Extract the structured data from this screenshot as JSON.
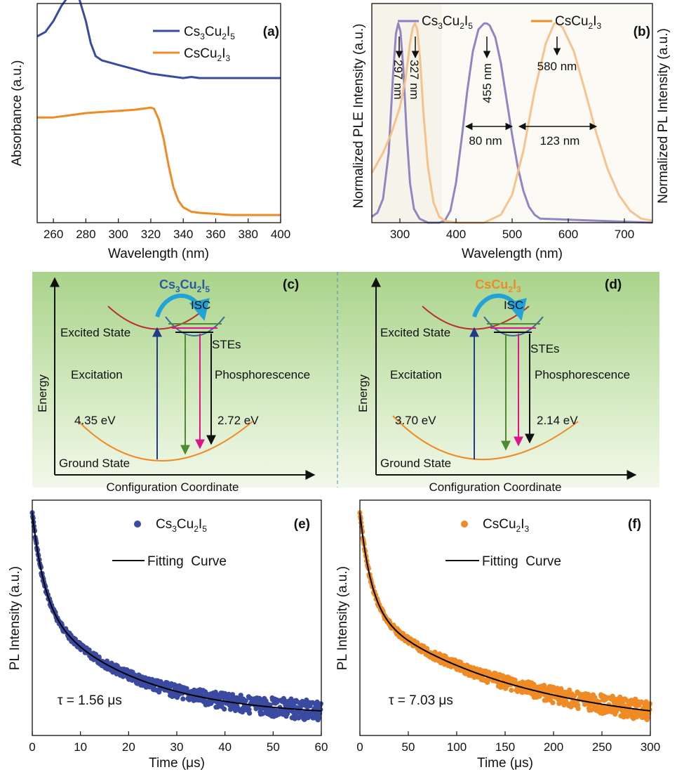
{
  "colors": {
    "blue": "#3a4aa0",
    "orange": "#f08a24",
    "plum": "#8c7ec0",
    "peach": "#f7bf85",
    "darkred": "#c0302f",
    "green": "#4e8a2e",
    "magenta": "#e0138c",
    "cyan": "#1fa3d8",
    "navy": "#223a8a"
  },
  "chart_data": [
    {
      "id": "a",
      "type": "line",
      "panel_label": "(a)",
      "xlabel": "Wavelength (nm)",
      "ylabel": "Absorbance (a.u.)",
      "xlim": [
        250,
        400
      ],
      "ylim": [
        0,
        1
      ],
      "xticks": [
        "260",
        "280",
        "300",
        "320",
        "340",
        "360",
        "380",
        "400"
      ],
      "legend_position": "top-right",
      "series": [
        {
          "name": "Cs3Cu2I5",
          "name_main": "Cs",
          "name_sub1": "3",
          "name_mid": "Cu",
          "name_sub2": "2",
          "name_end": "I",
          "name_sub3": "5",
          "color": "#3a4aa0",
          "x": [
            250,
            255,
            260,
            265,
            270,
            273,
            276,
            280,
            283,
            286,
            290,
            295,
            300,
            310,
            320,
            330,
            340,
            345,
            350,
            360,
            370,
            380,
            390,
            400
          ],
          "y": [
            0.85,
            0.87,
            0.92,
            0.99,
            1.04,
            1.05,
            1.02,
            0.92,
            0.82,
            0.76,
            0.74,
            0.73,
            0.72,
            0.7,
            0.68,
            0.67,
            0.66,
            0.665,
            0.66,
            0.66,
            0.66,
            0.66,
            0.66,
            0.66
          ]
        },
        {
          "name": "CsCu2I3",
          "name_main": "Cs",
          "name_sub1": "",
          "name_mid": "Cu",
          "name_sub2": "2",
          "name_end": "I",
          "name_sub3": "3",
          "color": "#f08a24",
          "x": [
            250,
            260,
            270,
            280,
            290,
            300,
            310,
            315,
            320,
            322,
            325,
            328,
            331,
            334,
            337,
            340,
            345,
            350,
            360,
            370,
            380,
            390,
            400
          ],
          "y": [
            0.48,
            0.48,
            0.49,
            0.5,
            0.505,
            0.51,
            0.515,
            0.52,
            0.525,
            0.52,
            0.47,
            0.38,
            0.26,
            0.16,
            0.1,
            0.07,
            0.05,
            0.045,
            0.04,
            0.035,
            0.035,
            0.035,
            0.035
          ]
        }
      ]
    },
    {
      "id": "b",
      "type": "line",
      "panel_label": "(b)",
      "xlabel": "Wavelength (nm)",
      "ylabel_left": "Normalized PLE Intensity (a.u.)",
      "ylabel_right": "Normalized PL Intensity (a.u.)",
      "xlim": [
        250,
        750
      ],
      "ylim": [
        0,
        1.1
      ],
      "xticks": [
        "300",
        "400",
        "500",
        "600",
        "700"
      ],
      "series": [
        {
          "name": "Cs3Cu2I5",
          "name_main": "Cs",
          "name_sub1": "3",
          "name_mid": "Cu",
          "name_sub2": "2",
          "name_end": "I",
          "name_sub3": "5",
          "color": "#8c7ec0",
          "x": [
            250,
            260,
            270,
            280,
            288,
            293,
            297,
            301,
            306,
            312,
            318,
            325,
            335,
            350,
            370,
            380,
            390,
            400,
            410,
            420,
            430,
            440,
            450,
            455,
            460,
            470,
            480,
            490,
            500,
            510,
            520,
            530,
            540,
            550,
            750
          ],
          "y": [
            0.03,
            0.05,
            0.12,
            0.35,
            0.75,
            0.95,
            1.0,
            0.96,
            0.78,
            0.45,
            0.2,
            0.07,
            0.02,
            0.0,
            0.0,
            0.01,
            0.06,
            0.2,
            0.42,
            0.66,
            0.86,
            0.97,
            1.0,
            1.0,
            0.99,
            0.93,
            0.8,
            0.62,
            0.44,
            0.28,
            0.16,
            0.08,
            0.04,
            0.02,
            0.0
          ]
        },
        {
          "name": "CsCu2I3",
          "name_main": "Cs",
          "name_sub1": "",
          "name_mid": "Cu",
          "name_sub2": "2",
          "name_end": "I",
          "name_sub3": "3",
          "color": "#f7bf85",
          "x": [
            250,
            270,
            285,
            300,
            310,
            318,
            323,
            327,
            331,
            336,
            342,
            350,
            360,
            370,
            380,
            400,
            450,
            480,
            500,
            520,
            540,
            560,
            575,
            580,
            590,
            610,
            630,
            650,
            670,
            690,
            710,
            730,
            750
          ],
          "y": [
            0.25,
            0.35,
            0.45,
            0.58,
            0.72,
            0.9,
            0.98,
            1.0,
            0.97,
            0.82,
            0.55,
            0.28,
            0.1,
            0.03,
            0.01,
            0.0,
            0.0,
            0.04,
            0.14,
            0.36,
            0.66,
            0.9,
            1.0,
            1.0,
            0.98,
            0.86,
            0.66,
            0.45,
            0.27,
            0.14,
            0.06,
            0.02,
            0.01
          ]
        }
      ],
      "annotations": {
        "peak1": "297 nm",
        "peak2": "327 nm",
        "peak3": "455 nm",
        "peak4": "580 nm",
        "fwhm1": "80 nm",
        "fwhm2": "123 nm"
      }
    },
    {
      "id": "e",
      "type": "scatter",
      "panel_label": "(e)",
      "xlabel": "Time (μs)",
      "ylabel": "PL Intensity (a.u.)",
      "xlim": [
        0,
        60
      ],
      "xticks": [
        "0",
        "10",
        "20",
        "30",
        "40",
        "50",
        "60"
      ],
      "legend_position": "top-center",
      "series": [
        {
          "name": "Cs3Cu2I5",
          "name_main": "Cs",
          "name_sub1": "3",
          "name_mid": "Cu",
          "name_sub2": "2",
          "name_end": "I",
          "name_sub3": "5",
          "color": "#3a4aa0",
          "style": "points"
        },
        {
          "name": "Fitting  Curve",
          "color": "#000000",
          "style": "line",
          "tau": 1.56,
          "t2": 20,
          "a1": 0.45,
          "t1": 2.5,
          "a2": 0.55
        }
      ],
      "tau_label": "τ = 1.56 μs"
    },
    {
      "id": "f",
      "type": "scatter",
      "panel_label": "(f)",
      "xlabel": "Time (μs)",
      "ylabel": "PL Intensity (a.u.)",
      "xlim": [
        0,
        300
      ],
      "xticks": [
        "0",
        "50",
        "100",
        "150",
        "200",
        "250",
        "300"
      ],
      "legend_position": "top-center",
      "series": [
        {
          "name": "CsCu2I3",
          "name_main": "Cs",
          "name_sub1": "",
          "name_mid": "Cu",
          "name_sub2": "2",
          "name_end": "I",
          "name_sub3": "3",
          "color": "#f08a24",
          "style": "points"
        },
        {
          "name": "Fitting  Curve",
          "color": "#000000",
          "style": "line",
          "tau": 7.03,
          "t2": 160,
          "a1": 0.45,
          "t1": 12,
          "a2": 0.55
        }
      ],
      "tau_label": "τ = 7.03 μs"
    }
  ],
  "diagrams": {
    "c": {
      "panel_label": "(c)",
      "compound_main": "Cs",
      "compound_sub1": "3",
      "compound_mid": "Cu",
      "compound_sub2": "2",
      "compound_end": "I",
      "compound_sub3": "5",
      "text_color": "#2a5aa0",
      "isc": "ISC",
      "excited": "Excited State",
      "stes": "STEs",
      "excitation": "Excitation",
      "phosphorescence": "Phosphorescence",
      "energy_exc": "4.35 eV",
      "energy_em": "2.72 eV",
      "ground": "Ground State",
      "energy_axis": "Energy",
      "coordinate_axis": "Configuration Coordinate"
    },
    "d": {
      "panel_label": "(d)",
      "compound_main": "Cs",
      "compound_sub1": "",
      "compound_mid": "Cu",
      "compound_sub2": "2",
      "compound_end": "I",
      "compound_sub3": "3",
      "text_color": "#f08a24",
      "isc": "ISC",
      "excited": "Excited State",
      "stes": "STEs",
      "excitation": "Excitation",
      "phosphorescence": "Phosphorescence",
      "energy_exc": "3.70 eV",
      "energy_em": "2.14 eV",
      "ground": "Ground State",
      "energy_axis": "Energy",
      "coordinate_axis": "Configuration Coordinate"
    }
  }
}
